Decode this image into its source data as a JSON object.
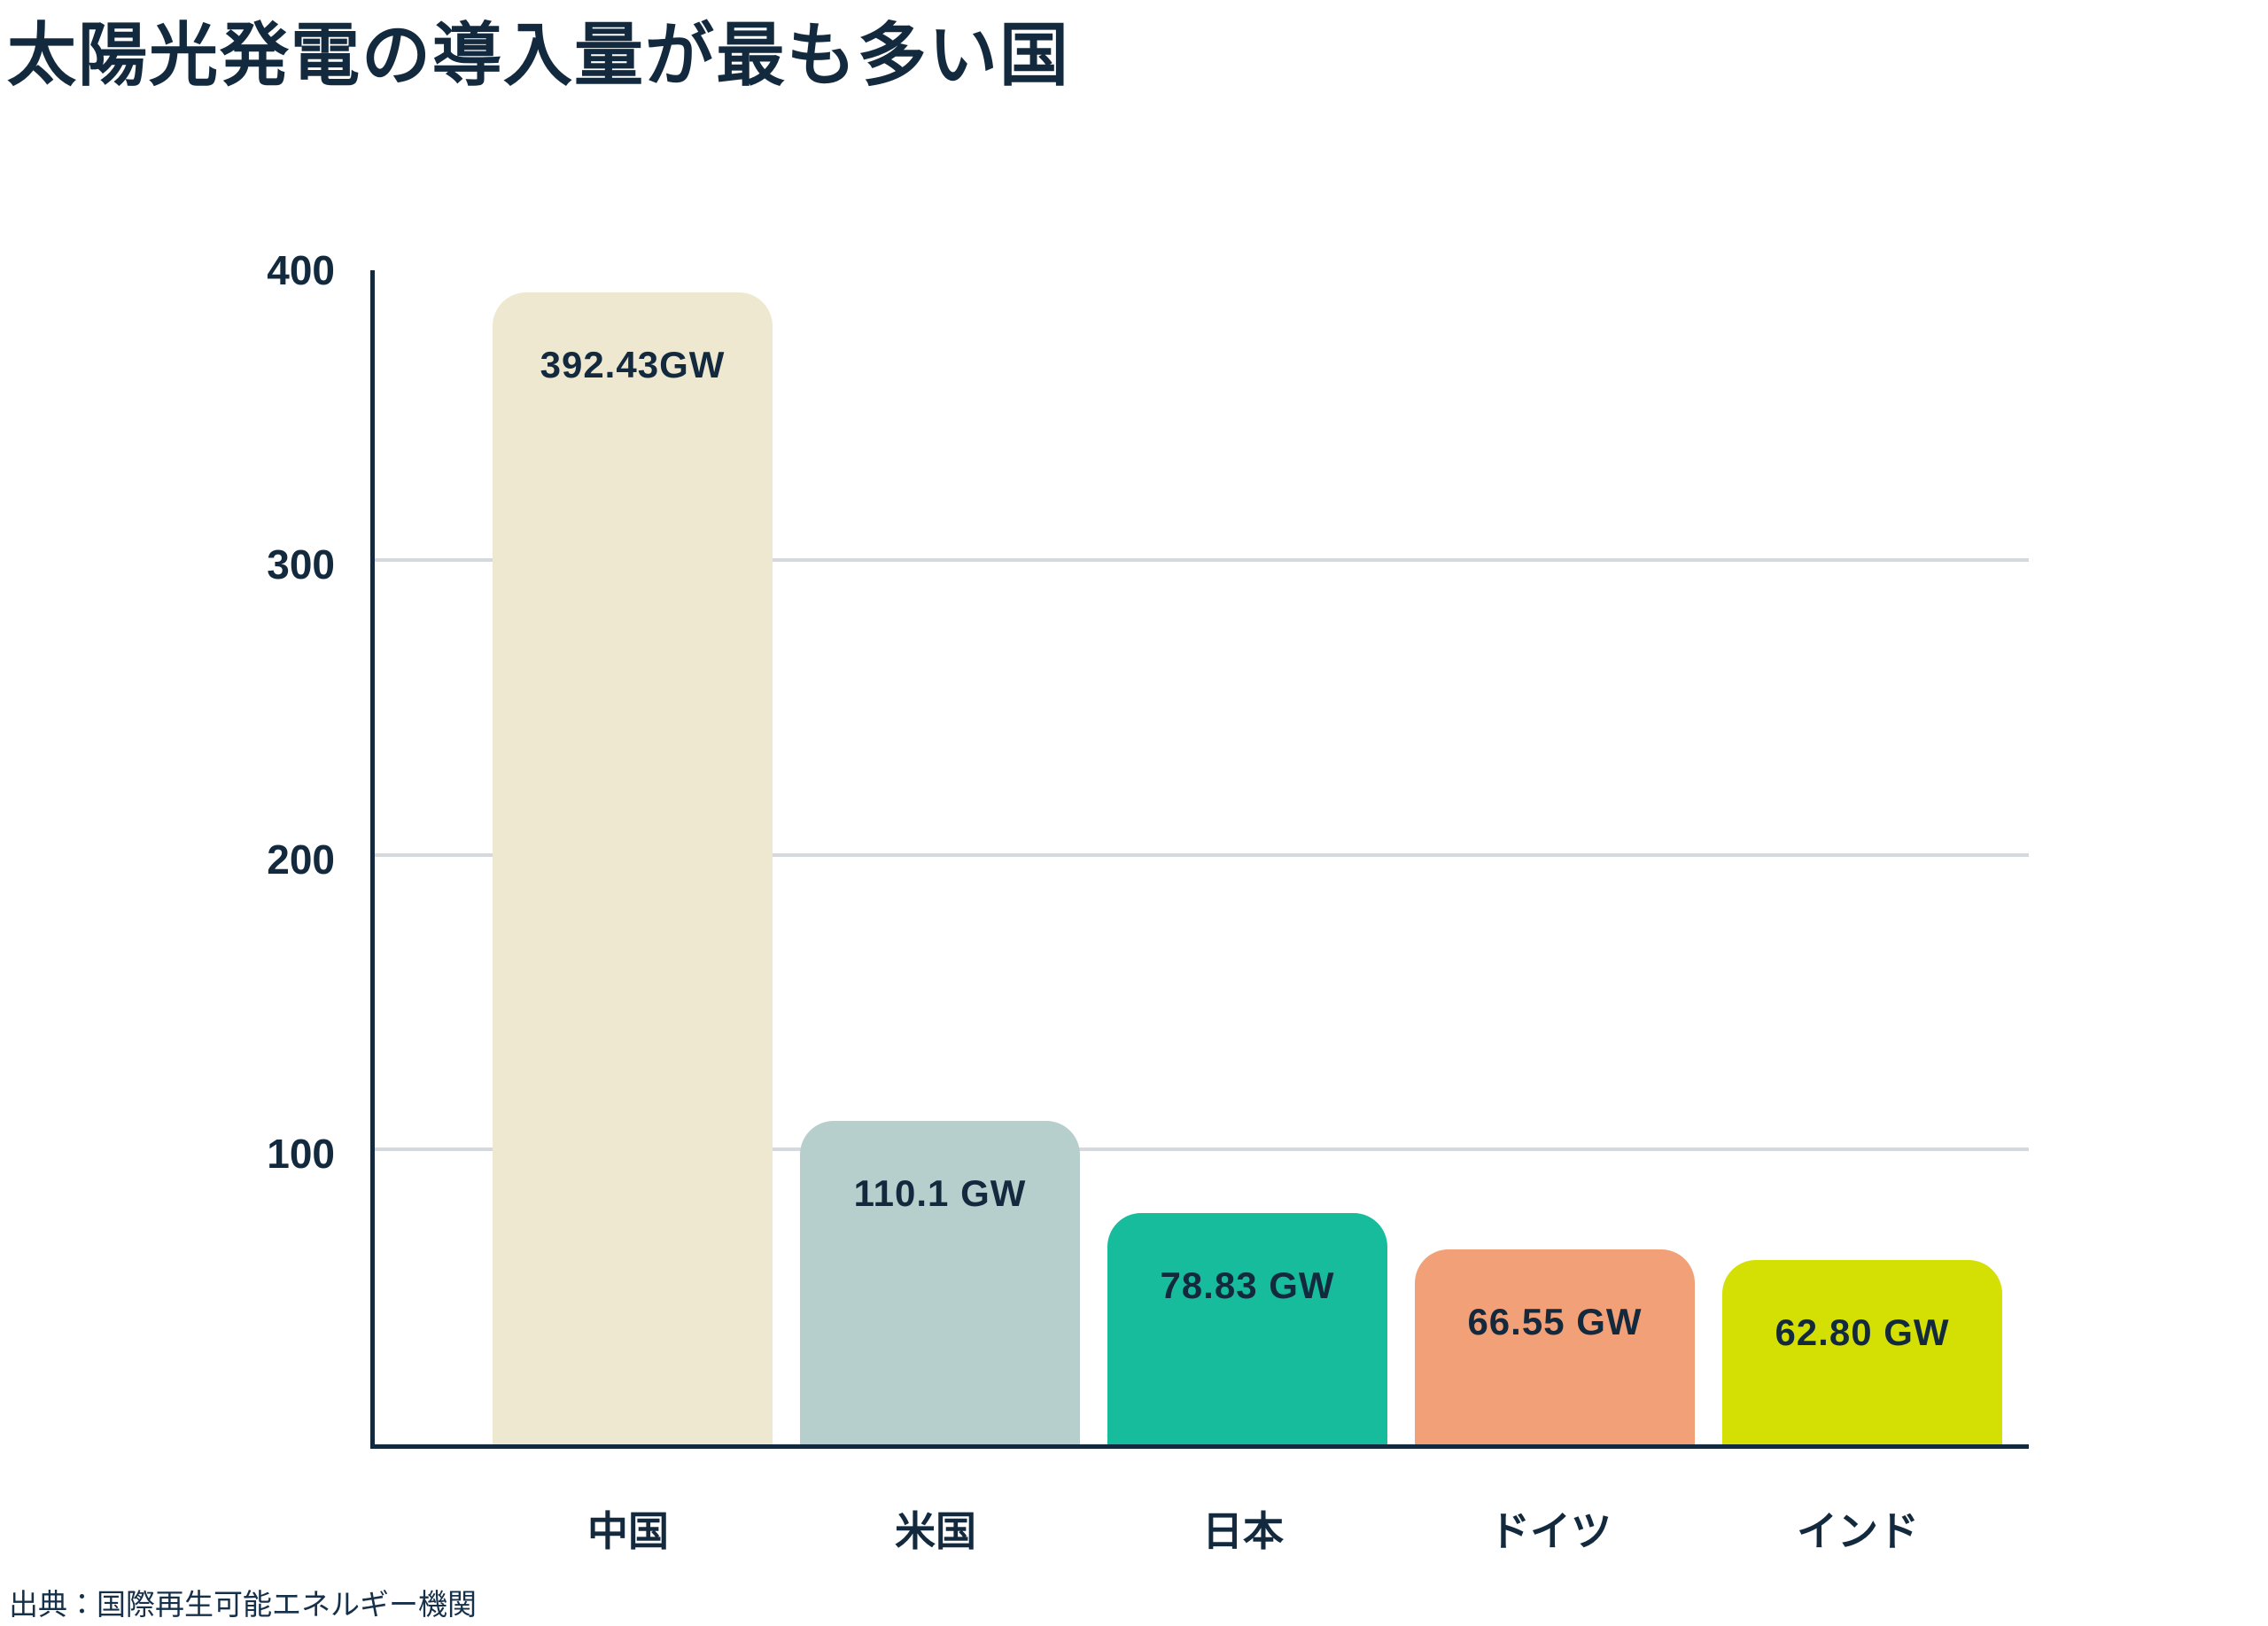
{
  "title": "太陽光発電の導入量が最も多い国",
  "source": "出典：国際再生可能エネルギー機関",
  "colors": {
    "text": "#132A3E",
    "axis": "#132A3E",
    "gridline": "#D5D8DC",
    "background": "#FFFFFF"
  },
  "y_axis": {
    "tick_labels": [
      "400",
      "300",
      "200",
      "100"
    ]
  },
  "chart_data": {
    "type": "bar",
    "title": "太陽光発電の導入量が最も多い国",
    "categories": [
      "中国",
      "米国",
      "日本",
      "ドイツ",
      "インド"
    ],
    "values": [
      392.43,
      110.1,
      78.83,
      66.55,
      62.8
    ],
    "value_labels": [
      "392.43GW",
      "110.1 GW",
      "78.83 GW",
      "66.55 GW",
      "62.80 GW"
    ],
    "bar_colors": [
      "#EDE8CF",
      "#B6CFCC",
      "#17BC9C",
      "#F2A077",
      "#D4E004"
    ],
    "xlabel": "",
    "ylabel": "",
    "unit": "GW",
    "ylim": [
      0,
      400
    ],
    "yticks": [
      0,
      100,
      200,
      300,
      400
    ],
    "grid": true,
    "legend": false,
    "source": "出典：国際再生可能エネルギー機関"
  }
}
